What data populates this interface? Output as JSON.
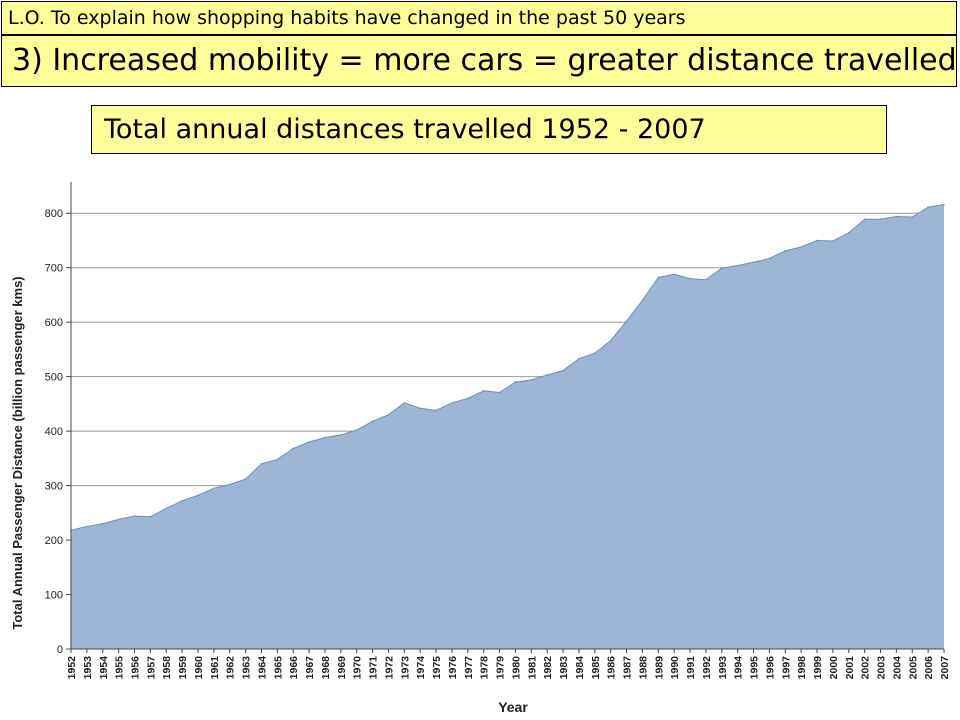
{
  "header": {
    "learning_objective": "L.O. To explain how shopping habits have changed in the past 50 years",
    "point_title": "3) Increased mobility = more cars = greater distance travelled",
    "chart_title": "Total annual distances travelled 1952 - 2007"
  },
  "colors": {
    "banner_background": "#ffff99",
    "area_fill": "#9fb5d5",
    "area_stroke": "#6f8cb8",
    "grid": "#999999"
  },
  "chart_data": {
    "type": "area",
    "xlabel": "Year",
    "ylabel": "Total Annual Passenger Distance (billion passenger kms)",
    "ylim": [
      0,
      850
    ],
    "yticks": [
      0,
      100,
      200,
      300,
      400,
      500,
      600,
      700,
      800
    ],
    "grid": true,
    "x": [
      "1952",
      "1953",
      "1954",
      "1955",
      "1956",
      "1957",
      "1958",
      "1959",
      "1960",
      "1961",
      "1962",
      "1963",
      "1964",
      "1965",
      "1966",
      "1967",
      "1968",
      "1969",
      "1970",
      "1971",
      "1972",
      "1973",
      "1974",
      "1975",
      "1976",
      "1977",
      "1978",
      "1979",
      "1980",
      "1981",
      "1982",
      "1983",
      "1984",
      "1985",
      "1986",
      "1987",
      "1988",
      "1989",
      "1990",
      "1991",
      "1992",
      "1993",
      "1994",
      "1995",
      "1996",
      "1997",
      "1998",
      "1999",
      "2000",
      "2001",
      "2002",
      "2003",
      "2004",
      "2005",
      "2006",
      "2007"
    ],
    "series": [
      {
        "values": [
          218,
          225,
          230,
          238,
          244,
          243,
          258,
          272,
          282,
          295,
          302,
          312,
          340,
          348,
          368,
          380,
          388,
          393,
          402,
          418,
          430,
          452,
          442,
          438,
          452,
          460,
          474,
          471,
          490,
          494,
          503,
          511,
          533,
          543,
          566,
          602,
          640,
          682,
          688,
          680,
          678,
          699,
          704,
          710,
          717,
          731,
          738,
          750,
          749,
          764,
          789,
          789,
          794,
          793,
          811,
          816
        ]
      }
    ]
  }
}
